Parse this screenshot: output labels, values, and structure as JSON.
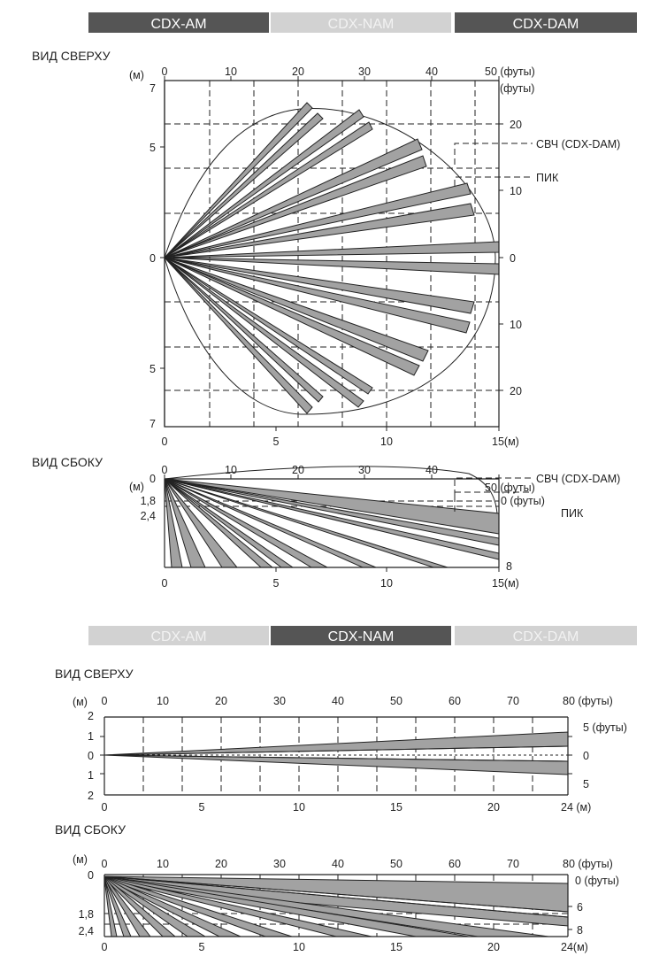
{
  "tabs_top": [
    {
      "label": "CDX-AM",
      "active": true
    },
    {
      "label": "CDX-NAM",
      "active": false
    },
    {
      "label": "CDX-DAM",
      "active": true
    }
  ],
  "tabs_bottom": [
    {
      "label": "CDX-AM",
      "active": false
    },
    {
      "label": "CDX-NAM",
      "active": true
    },
    {
      "label": "CDX-DAM",
      "active": false
    }
  ],
  "colors": {
    "active_tab": "#555555",
    "inactive_tab": "#d2d2d2",
    "beam_fill": "#a2a2a2"
  },
  "diagram_a_top": {
    "title": "ВИД СВЕРХУ",
    "unit_m": "(м)",
    "x_ft_ticks": [
      "0",
      "10",
      "20",
      "30",
      "40",
      "50 (футы)"
    ],
    "x_m_ticks": [
      "0",
      "5",
      "10",
      "15(м)"
    ],
    "y_m_ticks": [
      "7",
      "5",
      "0",
      "5",
      "7"
    ],
    "y_ft_unit": "(футы)",
    "y_ft_ticks": [
      "20",
      "10",
      "0",
      "10",
      "20"
    ],
    "label_microwave": "СВЧ (CDX-DAM)",
    "label_pir": "ПИК"
  },
  "diagram_a_side": {
    "title": "ВИД СБОКУ",
    "unit_m": "(м)",
    "x_ft_ticks": [
      "0",
      "10",
      "20",
      "30",
      "40",
      "50 (футы)"
    ],
    "x_m_ticks": [
      "0",
      "5",
      "10",
      "15(м)"
    ],
    "y_m_ticks": [
      "0",
      "1,8",
      "2,4"
    ],
    "y_ft_ticks": [
      "0 (футы)",
      "8"
    ],
    "label_microwave": "СВЧ (CDX-DAM)",
    "label_pir": "ПИК"
  },
  "diagram_b_top": {
    "title": "ВИД СВЕРХУ",
    "unit_m": "(м)",
    "x_ft_ticks": [
      "0",
      "10",
      "20",
      "30",
      "40",
      "50",
      "60",
      "70",
      "80 (футы)"
    ],
    "x_m_ticks": [
      "0",
      "5",
      "10",
      "15",
      "20",
      "24 (м)"
    ],
    "y_m_ticks": [
      "2",
      "1",
      "0",
      "1",
      "2"
    ],
    "y_ft_ticks": [
      "5 (футы)",
      "0",
      "5"
    ]
  },
  "diagram_b_side": {
    "title": "ВИД СБОКУ",
    "unit_m": "(м)",
    "x_ft_ticks": [
      "0",
      "10",
      "20",
      "30",
      "40",
      "50",
      "60",
      "70",
      "80 (футы)"
    ],
    "x_m_ticks": [
      "0",
      "5",
      "10",
      "15",
      "20",
      "24(м)"
    ],
    "y_m_ticks": [
      "0",
      "1,8",
      "2,4"
    ],
    "y_ft_ticks": [
      "0 (футы)",
      "6",
      "8"
    ]
  }
}
